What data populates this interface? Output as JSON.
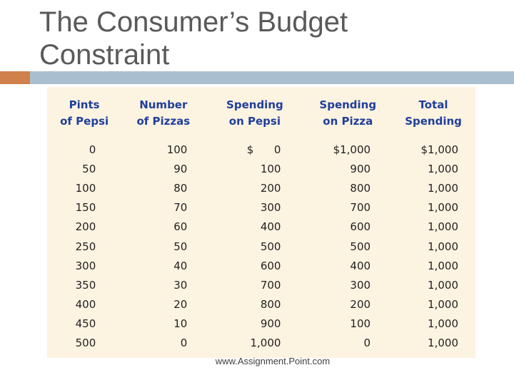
{
  "slide": {
    "title_line1": "The Consumer’s Budget",
    "title_line2": "Constraint",
    "footer": "www.Assignment.Point.com"
  },
  "table": {
    "headers": [
      [
        "Pints",
        "of Pepsi"
      ],
      [
        "Number",
        "of Pizzas"
      ],
      [
        "Spending",
        "on Pepsi"
      ],
      [
        "Spending",
        "on Pizza"
      ],
      [
        "Total",
        "Spending"
      ]
    ],
    "rows": [
      [
        "0",
        "100",
        "$      0",
        "$1,000",
        "$1,000"
      ],
      [
        "50",
        "90",
        "100",
        "900",
        "1,000"
      ],
      [
        "100",
        "80",
        "200",
        "800",
        "1,000"
      ],
      [
        "150",
        "70",
        "300",
        "700",
        "1,000"
      ],
      [
        "200",
        "60",
        "400",
        "600",
        "1,000"
      ],
      [
        "250",
        "50",
        "500",
        "500",
        "1,000"
      ],
      [
        "300",
        "40",
        "600",
        "400",
        "1,000"
      ],
      [
        "350",
        "30",
        "700",
        "300",
        "1,000"
      ],
      [
        "400",
        "20",
        "800",
        "200",
        "1,000"
      ],
      [
        "450",
        "10",
        "900",
        "100",
        "1,000"
      ],
      [
        "500",
        "0",
        "1,000",
        "0",
        "1,000"
      ]
    ]
  },
  "colors": {
    "title": "#595959",
    "accent_orange": "#d0804b",
    "accent_bar": "#a9bfcf",
    "table_background": "#fdf3e1",
    "header_text": "#1f3f9a"
  }
}
